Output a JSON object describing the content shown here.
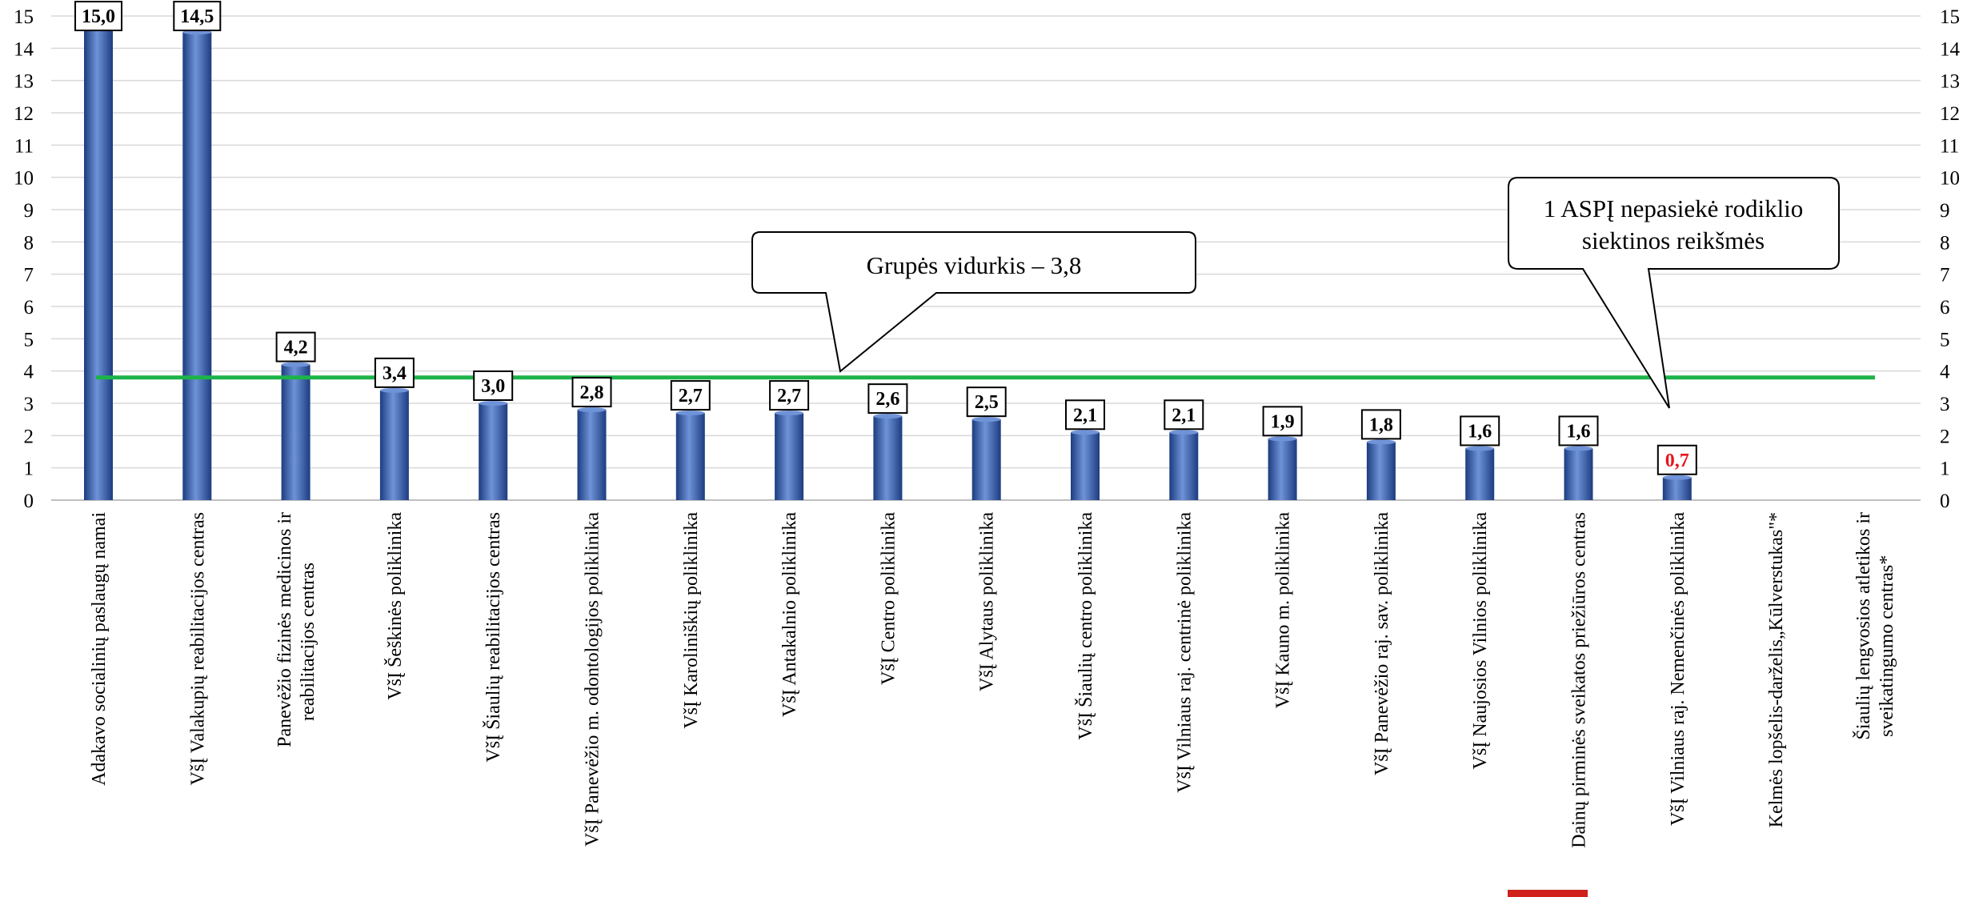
{
  "chart_data": {
    "type": "bar",
    "categories": [
      "Adakavo socialinių paslaugų namai",
      "VšĮ Valakupių reabilitacijos centras",
      "Panevėžio fizinės medicinos ir reabilitacijos centras",
      "VšĮ Šeškinės poliklinika",
      "VšĮ Šiaulių reabilitacijos centras",
      "VšĮ Panevėžio m. odontologijos poliklinika",
      "VšĮ Karoliniškių poliklinika",
      "VšĮ Antakalnio poliklinika",
      "VšĮ Centro poliklinika",
      "VšĮ Alytaus poliklinika",
      "VšĮ Šiaulių centro poliklinika",
      "VšĮ Vilniaus raj. centrinė poliklinika",
      "VšĮ Kauno m. poliklinika",
      "VšĮ Panevėžio raj. sav. poliklinika",
      "VšĮ Naujosios Vilnios poliklinika",
      "Dainų pirminės sveikatos priežiūros centras",
      "VšĮ Vilniaus raj. Nemenčinės poliklinika",
      "Kelmės lopšelis-darželis„Kūlverstukas\"*",
      "Šiaulių lengvosios atletikos ir sveikatingumo centras*"
    ],
    "values": [
      15.0,
      14.5,
      4.2,
      3.4,
      3.0,
      2.8,
      2.7,
      2.7,
      2.6,
      2.5,
      2.1,
      2.1,
      1.9,
      1.8,
      1.6,
      1.6,
      0.7,
      null,
      null
    ],
    "value_labels": [
      "15,0",
      "14,5",
      "4,2",
      "3,4",
      "3,0",
      "2,8",
      "2,7",
      "2,7",
      "2,6",
      "2,5",
      "2,1",
      "2,1",
      "1,9",
      "1,8",
      "1,6",
      "1,6",
      "0,7",
      "",
      ""
    ],
    "highlighted_index": 16,
    "ylim": [
      0,
      15
    ],
    "yticks": [
      "0",
      "1",
      "2",
      "3",
      "4",
      "5",
      "6",
      "7",
      "8",
      "9",
      "10",
      "11",
      "12",
      "13",
      "14",
      "15"
    ],
    "average": 3.8,
    "grid": true,
    "secondary_y_axis": true,
    "colors": {
      "bar": "#3a63b5",
      "bar_dark": "#1d3c80",
      "bar_light": "#6f93d8",
      "average_line": "#1db34a",
      "gridline": "#d9d9d9",
      "highlight_text": "#e8141c",
      "text": "#000000"
    },
    "annotations": [
      {
        "name": "average-callout",
        "text": "Grupės vidurkis – 3,8"
      },
      {
        "name": "unmet-target-callout",
        "lines": [
          "1 ASPĮ nepasiekė rodiklio",
          "siektinos reikšmės"
        ]
      }
    ]
  }
}
